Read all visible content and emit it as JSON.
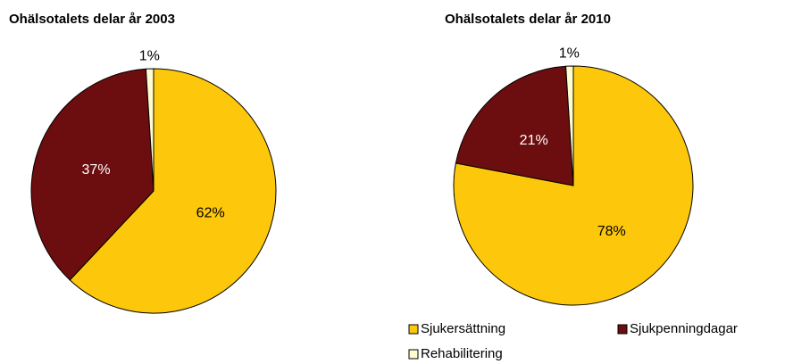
{
  "chart_data": [
    {
      "type": "pie",
      "title": "Ohälsotalets delar år 2003",
      "categories": [
        "Sjukersättning",
        "Sjukpenningdagar",
        "Rehabilitering"
      ],
      "values": [
        62,
        37,
        1
      ],
      "value_labels": [
        "62%",
        "37%",
        "1%"
      ],
      "colors": [
        "#fdc70c",
        "#6c0d0f",
        "#fffcd0"
      ]
    },
    {
      "type": "pie",
      "title": "Ohälsotalets delar år 2010",
      "categories": [
        "Sjukersättning",
        "Sjukpenningdagar",
        "Rehabilitering"
      ],
      "values": [
        78,
        21,
        1
      ],
      "value_labels": [
        "78%",
        "21%",
        "1%"
      ],
      "colors": [
        "#fdc70c",
        "#6c0d0f",
        "#fffcd0"
      ],
      "legend": "bottom"
    }
  ]
}
